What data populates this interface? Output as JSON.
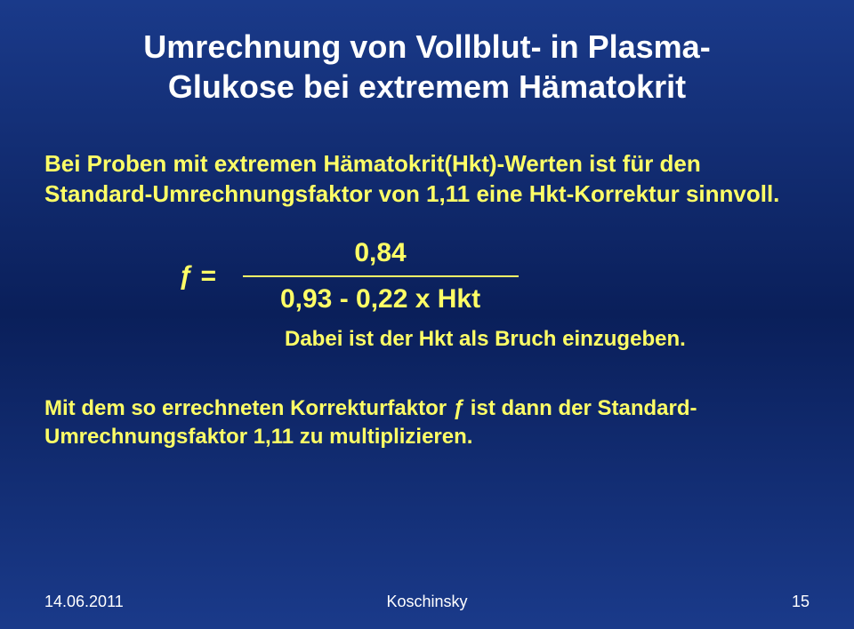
{
  "title_line1": "Umrechnung von Vollblut- in Plasma-",
  "title_line2": "Glukose bei extremem Hämatokrit",
  "body": "Bei Proben mit extremen Hämatokrit(Hkt)-Werten ist für den Standard-Umrechnungsfaktor von 1,11 eine Hkt-Korrektur sinnvoll.",
  "formula": {
    "lhs": "ƒ =",
    "numerator": "0,84",
    "denominator": "0,93 -  0,22 x Hkt"
  },
  "note": "Dabei ist der Hkt als Bruch einzugeben.",
  "conclusion_pre": "Mit dem so errechneten Korrekturfaktor ",
  "conclusion_f": "ƒ",
  "conclusion_post": " ist dann der Standard-Umrechnungsfaktor 1,11 zu multiplizieren.",
  "footer": {
    "date": "14.06.2011",
    "author": "Koschinsky",
    "page": "15"
  },
  "colors": {
    "bg_top": "#1a3a8a",
    "bg_mid": "#0a1f5a",
    "title": "#ffffff",
    "body": "#ffff66",
    "footer": "#ffffff"
  },
  "fonts": {
    "title_size_pt": 28,
    "body_size_pt": 20,
    "formula_size_pt": 22,
    "note_size_pt": 18,
    "footer_size_pt": 13
  }
}
